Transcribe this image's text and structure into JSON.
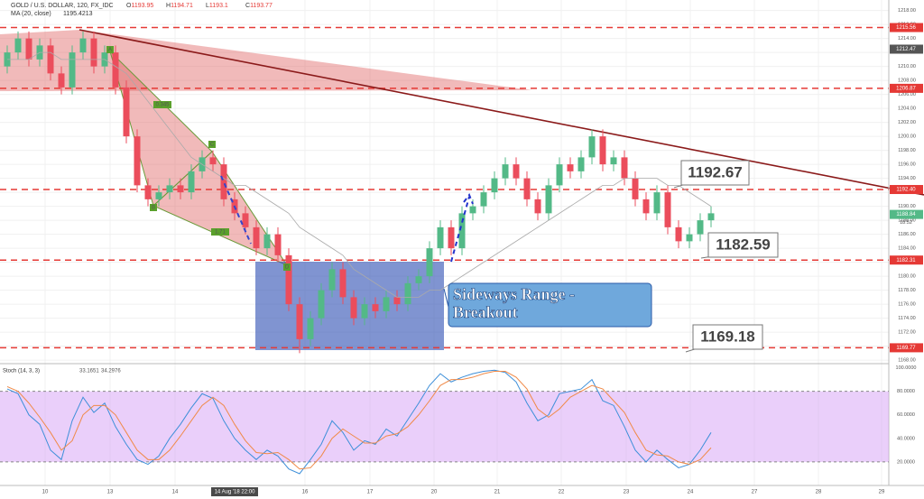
{
  "chart_data": {
    "type": "candlestick",
    "title": "GOLD / U.S. DOLLAR, 120, FX_IDC",
    "header_ohlc": [
      {
        "label": "O",
        "value": 1193.95
      },
      {
        "label": "H",
        "value": 1194.71
      },
      {
        "label": "L",
        "value": 1193.1
      },
      {
        "label": "C",
        "value": 1193.77
      }
    ],
    "ma_label": "MA (20, close)",
    "ma_value": 1195.4213,
    "up_color": "#53b987",
    "down_color": "#eb4d5c",
    "ylim": [
      1167.5,
      1219.5
    ],
    "yticks": [
      {
        "value": 1218,
        "label": "1218.00"
      },
      {
        "value": 1216,
        "label": "1216.00"
      },
      {
        "value": 1214,
        "label": "1214.00"
      },
      {
        "value": 1212,
        "label": "1212.00"
      },
      {
        "value": 1210,
        "label": "1210.00"
      },
      {
        "value": 1208,
        "label": "1208.00"
      },
      {
        "value": 1206,
        "label": "1206.00"
      },
      {
        "value": 1204,
        "label": "1204.00"
      },
      {
        "value": 1202,
        "label": "1202.00"
      },
      {
        "value": 1200,
        "label": "1200.00"
      },
      {
        "value": 1198,
        "label": "1198.00"
      },
      {
        "value": 1196,
        "label": "1196.00"
      },
      {
        "value": 1194,
        "label": "1194.00"
      },
      {
        "value": 1192,
        "label": "1192.00"
      },
      {
        "value": 1190,
        "label": "1190.00"
      },
      {
        "value": 1188,
        "label": "1188.00"
      },
      {
        "value": 1186,
        "label": "1186.00"
      },
      {
        "value": 1184,
        "label": "1184.00"
      },
      {
        "value": 1182,
        "label": "1182.00"
      },
      {
        "value": 1180,
        "label": "1180.00"
      },
      {
        "value": 1178,
        "label": "1178.00"
      },
      {
        "value": 1176,
        "label": "1176.00"
      },
      {
        "value": 1174,
        "label": "1174.00"
      },
      {
        "value": 1172,
        "label": "1172.00"
      },
      {
        "value": 1170,
        "label": "1170.00"
      },
      {
        "value": 1168,
        "label": "1168.00"
      }
    ],
    "price_levels": [
      {
        "value": 1215.56,
        "label": "1215.56",
        "color": "#e53935",
        "dashed": true
      },
      {
        "value": 1212.47,
        "label": "1212.47",
        "color": "#555555",
        "dashed": false
      },
      {
        "value": 1206.87,
        "label": "1206.87",
        "color": "#e53935",
        "dashed": true
      },
      {
        "value": 1192.4,
        "label": "1192.40",
        "color": "#e53935",
        "dashed": true
      },
      {
        "value": 1188.84,
        "label": "1188.84",
        "color": "#53b987",
        "dashed": false
      },
      {
        "value": 1182.31,
        "label": "1182.31",
        "color": "#e53935",
        "dashed": true
      },
      {
        "value": 1169.77,
        "label": "1169.77",
        "color": "#e53935",
        "dashed": true
      }
    ],
    "countdown": "18:52",
    "candles": [
      [
        1210,
        1213,
        1209,
        1212
      ],
      [
        1212,
        1215,
        1211,
        1214
      ],
      [
        1214,
        1215,
        1210,
        1211
      ],
      [
        1211,
        1214,
        1210,
        1213
      ],
      [
        1213,
        1214,
        1208,
        1209
      ],
      [
        1209,
        1210,
        1206,
        1207
      ],
      [
        1207,
        1213,
        1206,
        1212
      ],
      [
        1212,
        1215,
        1211,
        1214
      ],
      [
        1214,
        1215,
        1209,
        1210
      ],
      [
        1210,
        1213,
        1209,
        1212
      ],
      [
        1212,
        1213,
        1206,
        1207
      ],
      [
        1207,
        1208,
        1199,
        1200
      ],
      [
        1200,
        1201,
        1192,
        1193
      ],
      [
        1193,
        1194,
        1190,
        1191
      ],
      [
        1191,
        1193,
        1190,
        1192
      ],
      [
        1192,
        1194,
        1191,
        1193
      ],
      [
        1193,
        1194,
        1191,
        1192
      ],
      [
        1192,
        1196,
        1191,
        1195
      ],
      [
        1195,
        1198,
        1194,
        1197
      ],
      [
        1197,
        1198,
        1195,
        1196
      ],
      [
        1196,
        1197,
        1190,
        1191
      ],
      [
        1191,
        1192,
        1188,
        1189
      ],
      [
        1189,
        1190,
        1186,
        1187
      ],
      [
        1187,
        1188,
        1183,
        1184
      ],
      [
        1184,
        1187,
        1183,
        1186
      ],
      [
        1186,
        1187,
        1182,
        1183
      ],
      [
        1183,
        1184,
        1175,
        1176
      ],
      [
        1176,
        1177,
        1169,
        1171
      ],
      [
        1171,
        1175,
        1170,
        1174
      ],
      [
        1174,
        1179,
        1173,
        1178
      ],
      [
        1178,
        1182,
        1177,
        1181
      ],
      [
        1181,
        1182,
        1176,
        1177
      ],
      [
        1177,
        1178,
        1173,
        1174
      ],
      [
        1174,
        1177,
        1173,
        1176
      ],
      [
        1176,
        1177,
        1174,
        1175
      ],
      [
        1175,
        1178,
        1174,
        1177
      ],
      [
        1177,
        1178,
        1175,
        1176
      ],
      [
        1176,
        1180,
        1175,
        1179
      ],
      [
        1179,
        1181,
        1178,
        1180
      ],
      [
        1180,
        1185,
        1179,
        1184
      ],
      [
        1184,
        1188,
        1183,
        1187
      ],
      [
        1187,
        1188,
        1183,
        1184
      ],
      [
        1184,
        1190,
        1183,
        1189
      ],
      [
        1189,
        1191,
        1188,
        1190
      ],
      [
        1190,
        1193,
        1189,
        1192
      ],
      [
        1192,
        1195,
        1191,
        1194
      ],
      [
        1194,
        1197,
        1193,
        1196
      ],
      [
        1196,
        1197,
        1193,
        1194
      ],
      [
        1194,
        1195,
        1190,
        1191
      ],
      [
        1191,
        1192,
        1188,
        1189
      ],
      [
        1189,
        1194,
        1188,
        1193
      ],
      [
        1193,
        1197,
        1192,
        1196
      ],
      [
        1196,
        1197,
        1194,
        1195
      ],
      [
        1195,
        1198,
        1194,
        1197
      ],
      [
        1197,
        1201,
        1196,
        1200
      ],
      [
        1200,
        1201,
        1195,
        1196
      ],
      [
        1196,
        1198,
        1195,
        1197
      ],
      [
        1197,
        1198,
        1193,
        1194
      ],
      [
        1194,
        1195,
        1190,
        1191
      ],
      [
        1191,
        1192,
        1188,
        1189
      ],
      [
        1189,
        1193,
        1188,
        1192
      ],
      [
        1192,
        1193,
        1186,
        1187
      ],
      [
        1187,
        1188,
        1184,
        1185
      ],
      [
        1185,
        1187,
        1184,
        1186
      ],
      [
        1186,
        1189,
        1185,
        1188
      ],
      [
        1188,
        1190,
        1187,
        1189
      ]
    ],
    "ma": [
      1211,
      1211,
      1211,
      1212,
      1212,
      1211,
      1211,
      1211,
      1211,
      1211,
      1210,
      1209,
      1207,
      1205,
      1203,
      1201,
      1199,
      1197,
      1196,
      1195,
      1194,
      1193,
      1193,
      1192,
      1191,
      1190,
      1189,
      1187,
      1186,
      1185,
      1184,
      1183,
      1181,
      1180,
      1179,
      1178,
      1177,
      1177,
      1177,
      1178,
      1178,
      1179,
      1180,
      1181,
      1182,
      1183,
      1184,
      1185,
      1186,
      1187,
      1188,
      1189,
      1190,
      1191,
      1192,
      1193,
      1193,
      1194,
      1194,
      1194,
      1194,
      1193,
      1193,
      1192,
      1191,
      1190
    ],
    "ma_color": "#aaaaaa",
    "annotations": [
      {
        "value": 1192.67
      },
      {
        "value": 1182.59
      },
      {
        "value": 1169.18
      }
    ],
    "range_text": [
      "Sideways Range -",
      "Breakout"
    ],
    "pattern_points": [
      "A",
      "B",
      "C",
      "D"
    ],
    "pattern_ratios": [
      0.345,
      1.71
    ],
    "stoch": {
      "label": "Stoch (14, 3, 3)",
      "ylim": [
        0,
        102
      ],
      "yticks": [
        {
          "value": 100,
          "label": "100.0000"
        },
        {
          "value": 80,
          "label": "80.0000"
        },
        {
          "value": 60,
          "label": "60.0000"
        },
        {
          "value": 40,
          "label": "40.0000"
        },
        {
          "value": 20,
          "label": "20.0000"
        }
      ],
      "band": [
        20,
        80
      ],
      "series": [
        {
          "name": "33.1651",
          "color": "#3d8fd9",
          "values": [
            82,
            78,
            60,
            52,
            30,
            22,
            55,
            75,
            62,
            70,
            50,
            35,
            22,
            18,
            25,
            40,
            52,
            66,
            78,
            74,
            55,
            40,
            30,
            22,
            30,
            25,
            14,
            10,
            22,
            35,
            55,
            45,
            30,
            38,
            35,
            48,
            42,
            56,
            70,
            85,
            95,
            88,
            92,
            95,
            97,
            98,
            96,
            88,
            70,
            55,
            60,
            78,
            80,
            82,
            90,
            72,
            68,
            50,
            30,
            20,
            30,
            22,
            15,
            18,
            30,
            45
          ]
        },
        {
          "name": "34.2976",
          "color": "#f08a48",
          "values": [
            84,
            80,
            70,
            58,
            45,
            30,
            38,
            60,
            68,
            68,
            60,
            45,
            30,
            22,
            22,
            30,
            42,
            55,
            68,
            75,
            68,
            52,
            38,
            28,
            27,
            28,
            22,
            14,
            15,
            25,
            40,
            48,
            42,
            36,
            36,
            42,
            44,
            50,
            60,
            72,
            85,
            90,
            90,
            92,
            95,
            97,
            97,
            92,
            82,
            65,
            58,
            65,
            75,
            80,
            85,
            82,
            72,
            62,
            45,
            30,
            26,
            25,
            20,
            18,
            22,
            32
          ]
        }
      ]
    },
    "x_labels": [
      "10",
      "13",
      "14",
      "16",
      "17",
      "20",
      "21",
      "22",
      "23",
      "24",
      "27",
      "28",
      "29"
    ],
    "crosshair_label": "14 Aug '18  22:00"
  }
}
